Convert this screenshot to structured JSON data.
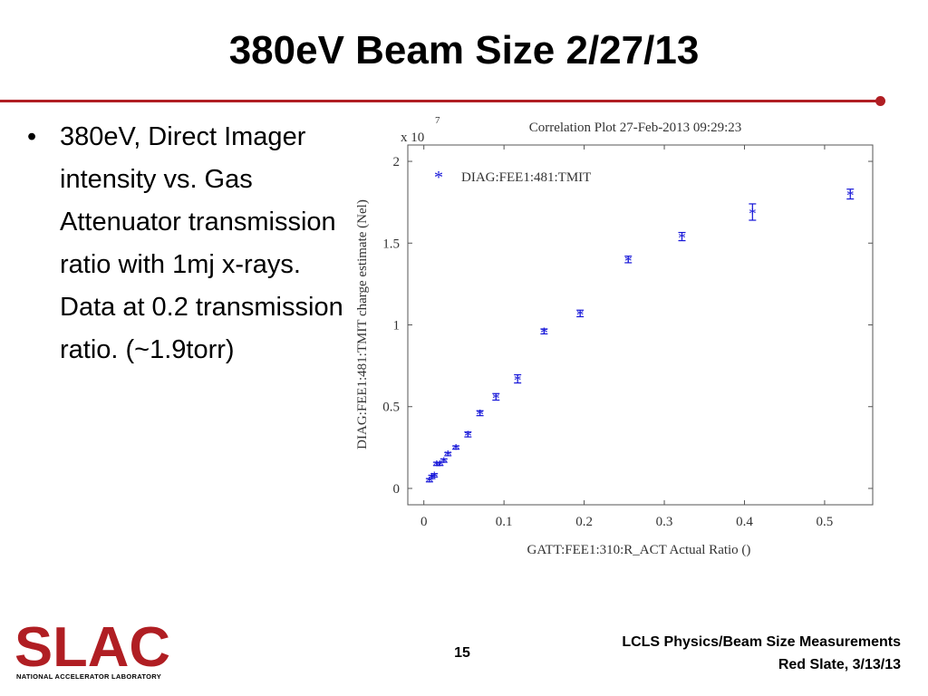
{
  "slide": {
    "title": "380eV Beam Size 2/27/13",
    "bullet": "380eV, Direct Imager intensity vs. Gas Attenuator transmission ratio with 1mj x-rays. Data at 0.2 transmission ratio. (~1.9torr)",
    "page_number": "15",
    "footer_line1": "LCLS Physics/Beam Size Measurements",
    "footer_line2": "Red Slate, 3/13/13",
    "logo_text": "SLAC",
    "logo_subtitle": "NATIONAL ACCELERATOR LABORATORY",
    "accent_color": "#b01e23"
  },
  "chart_data": {
    "type": "scatter",
    "title": "Correlation Plot 27-Feb-2013 09:29:23",
    "xlabel": "GATT:FEE1:310:R_ACT Actual Ratio ()",
    "ylabel": "DIAG:FEE1:481:TMIT charge estimate (Nel)",
    "y_multiplier": "x 10",
    "y_multiplier_exp": "7",
    "xlim": [
      -0.02,
      0.56
    ],
    "ylim": [
      -0.1,
      2.1
    ],
    "xticks": [
      0,
      0.1,
      0.2,
      0.3,
      0.4,
      0.5
    ],
    "xtick_labels": [
      "0",
      "0.1",
      "0.2",
      "0.3",
      "0.4",
      "0.5"
    ],
    "yticks": [
      0,
      0.5,
      1,
      1.5,
      2
    ],
    "ytick_labels": [
      "0",
      "0.5",
      "1",
      "1.5",
      "2"
    ],
    "grid": false,
    "legend_position": "top-left",
    "marker_color": "#1515d8",
    "series": [
      {
        "name": "DIAG:FEE1:481:TMIT",
        "x": [
          0.007,
          0.01,
          0.013,
          0.016,
          0.02,
          0.025,
          0.03,
          0.04,
          0.055,
          0.07,
          0.09,
          0.117,
          0.15,
          0.195,
          0.255,
          0.322,
          0.41,
          0.532
        ],
        "y": [
          0.05,
          0.07,
          0.08,
          0.15,
          0.15,
          0.17,
          0.21,
          0.25,
          0.33,
          0.46,
          0.56,
          0.67,
          0.96,
          1.07,
          1.4,
          1.54,
          1.69,
          1.8
        ],
        "err": [
          0.01,
          0.01,
          0.01,
          0.01,
          0.01,
          0.01,
          0.01,
          0.01,
          0.015,
          0.015,
          0.02,
          0.025,
          0.015,
          0.02,
          0.02,
          0.025,
          0.05,
          0.03
        ]
      }
    ]
  }
}
